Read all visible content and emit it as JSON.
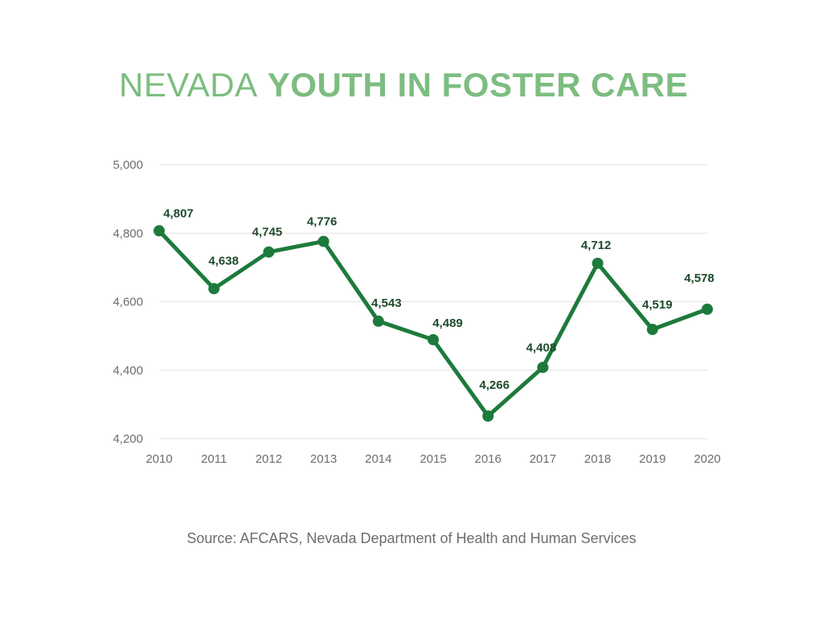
{
  "header": {
    "title_part1": "NEVADA",
    "title_part2": "YOUTH IN FOSTER CARE"
  },
  "footer": {
    "source": "Source: AFCARS, Nevada Department of Health and Human Services"
  },
  "colors": {
    "line": "#1d7a3c",
    "title": "#7cbd80",
    "grid": "#e2e2e2",
    "label": "#1e4a2c",
    "axis_text": "#6d6d6d"
  },
  "chart_data": {
    "type": "line",
    "title": "NEVADA YOUTH IN FOSTER CARE",
    "x": [
      "2010",
      "2011",
      "2012",
      "2013",
      "2014",
      "2015",
      "2016",
      "2017",
      "2018",
      "2019",
      "2020"
    ],
    "series": [
      {
        "values": [
          4807,
          4638,
          4745,
          4776,
          4543,
          4489,
          4266,
          4408,
          4712,
          4519,
          4578
        ],
        "labels": [
          "4,807",
          "4,638",
          "4,745",
          "4,776",
          "4,543",
          "4,489",
          "4,266",
          "4,408",
          "4,712",
          "4,519",
          "4,578"
        ]
      }
    ],
    "ylim": [
      4200,
      5000
    ],
    "yticks": [
      4200,
      4400,
      4600,
      4800,
      5000
    ],
    "ytick_labels": [
      "4,200",
      "4,400",
      "4,600",
      "4,800",
      "5,000"
    ],
    "xlabel": "",
    "ylabel": "",
    "grid": true,
    "legend": "none"
  }
}
